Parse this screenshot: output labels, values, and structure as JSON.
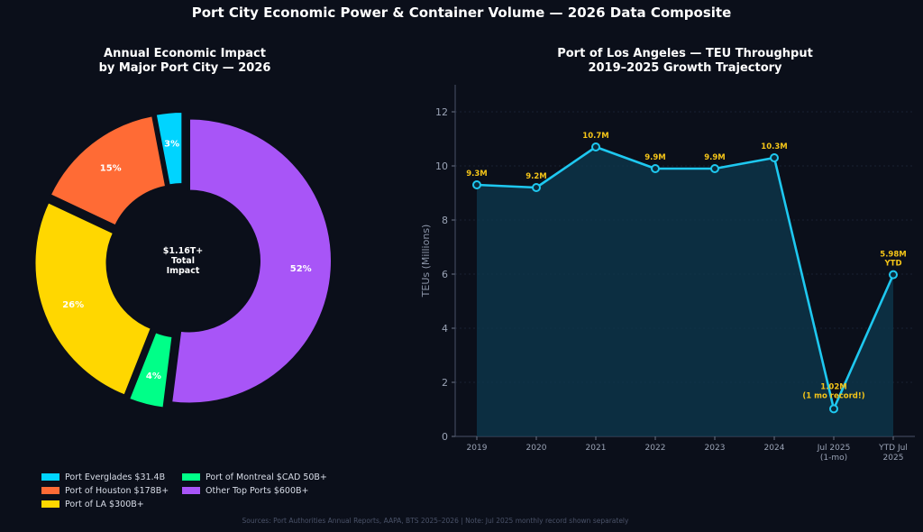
{
  "title": "Port City Economic Power & Container Volume — 2026 Data Composite",
  "source": "Sources: Port Authorities Annual Reports, AAPA, BTS 2025–2026 | Note: Jul 2025 monthly record shown separately",
  "chart_data": [
    {
      "type": "pie",
      "title_line1": "Annual Economic Impact",
      "title_line2": "by Major Port City — 2026",
      "center_label": [
        "$1.16T+",
        "Total",
        "Impact"
      ],
      "slices": [
        {
          "label": "Port Everglades $31.4B",
          "percent": 3,
          "percent_label": "3%",
          "color": "#00d4ff"
        },
        {
          "label": "Port of Houston $178B+",
          "percent": 15,
          "percent_label": "15%",
          "color": "#ff6b35"
        },
        {
          "label": "Port of LA $300B+",
          "percent": 26,
          "percent_label": "26%",
          "color": "#ffd700"
        },
        {
          "label": "Port of Montreal $CAD 50B+",
          "percent": 4,
          "percent_label": "4%",
          "color": "#00ff88"
        },
        {
          "label": "Other Top Ports $600B+",
          "percent": 52,
          "percent_label": "52%",
          "color": "#a855f7"
        }
      ],
      "legend_order": [
        0,
        3,
        1,
        4,
        2
      ]
    },
    {
      "type": "line",
      "title_line1": "Port of Los Angeles — TEU Throughput",
      "title_line2": "2019–2025 Growth Trajectory",
      "ylabel": "TEUs (Millions)",
      "ylim": [
        0,
        13
      ],
      "yticks": [
        0,
        2,
        4,
        6,
        8,
        10,
        12
      ],
      "categories": [
        [
          "2019"
        ],
        [
          "2020"
        ],
        [
          "2021"
        ],
        [
          "2022"
        ],
        [
          "2023"
        ],
        [
          "2024"
        ],
        [
          "Jul 2025",
          "(1-mo)"
        ],
        [
          "YTD Jul",
          "2025"
        ]
      ],
      "values": [
        9.3,
        9.2,
        10.7,
        9.9,
        9.9,
        10.3,
        1.02,
        5.98
      ],
      "data_labels": [
        [
          "9.3M"
        ],
        [
          "9.2M"
        ],
        [
          "10.7M"
        ],
        [
          "9.9M"
        ],
        [
          "9.9M"
        ],
        [
          "10.3M"
        ],
        [
          "1.02M",
          "(1 mo record!)"
        ],
        [
          "5.98M",
          "YTD"
        ]
      ],
      "line_color": "#1ec8f0",
      "label_color": "#f5c518",
      "grid": true
    }
  ]
}
